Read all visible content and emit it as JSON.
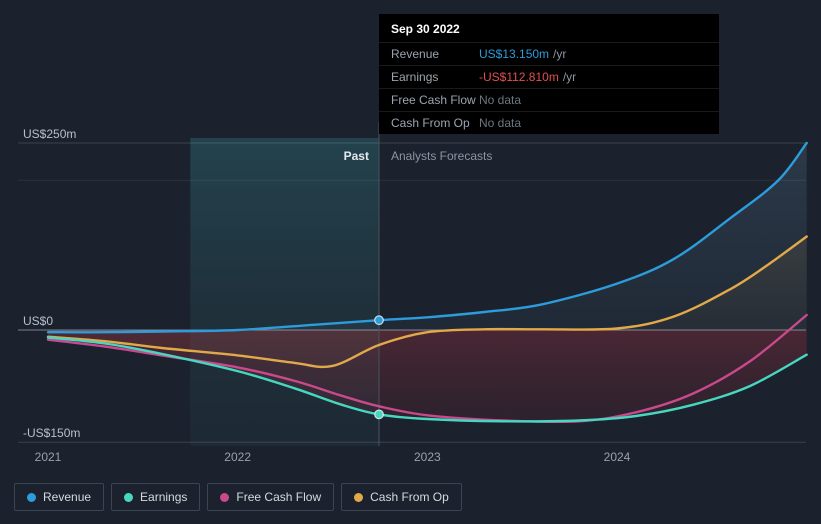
{
  "tooltip": {
    "date": "Sep 30 2022",
    "rows": [
      {
        "label": "Revenue",
        "value": "US$13.150m",
        "suffix": "/yr",
        "value_color": "#2D9CDB"
      },
      {
        "label": "Earnings",
        "value": "-US$112.810m",
        "suffix": "/yr",
        "value_color": "#E2504C"
      },
      {
        "label": "Free Cash Flow",
        "value": "No data",
        "suffix": "",
        "value_color": "#6D7680"
      },
      {
        "label": "Cash From Op",
        "value": "No data",
        "suffix": "",
        "value_color": "#6D7680"
      }
    ]
  },
  "theme": {
    "background": "#1B222D",
    "highlight_band": "#2E6A74",
    "negative_area": "#A03040",
    "zero_line": "#C8D2DC",
    "divider": "#49535F"
  },
  "chart_data": {
    "type": "line",
    "x_axis": {
      "ticks": [
        {
          "value": 2021,
          "label": "2021"
        },
        {
          "value": 2022,
          "label": "2022"
        },
        {
          "value": 2023,
          "label": "2023"
        },
        {
          "value": 2024,
          "label": "2024"
        }
      ],
      "range": [
        2021,
        2025.05
      ]
    },
    "y_axis": {
      "labels": [
        {
          "value": 250,
          "label": "US$250m"
        },
        {
          "value": 0,
          "label": "US$0"
        },
        {
          "value": -150,
          "label": "-US$150m"
        }
      ],
      "gridlines": [
        250,
        200,
        0,
        -150
      ],
      "range": [
        -165,
        262
      ],
      "unit": "US$ millions"
    },
    "divider": {
      "x": 2022.745,
      "past_label": "Past",
      "forecast_label": "Analysts Forecasts"
    },
    "highlight_band": {
      "from": 2021.75,
      "to": 2022.745
    },
    "series": [
      {
        "name": "Revenue",
        "color": "#2D9CDB",
        "points": [
          [
            2021,
            -3
          ],
          [
            2021.3,
            -3
          ],
          [
            2021.6,
            -2
          ],
          [
            2022,
            0
          ],
          [
            2022.4,
            7
          ],
          [
            2022.745,
            13.15
          ],
          [
            2023,
            17
          ],
          [
            2023.3,
            24
          ],
          [
            2023.6,
            34
          ],
          [
            2024,
            62
          ],
          [
            2024.3,
            95
          ],
          [
            2024.6,
            150
          ],
          [
            2024.85,
            200
          ],
          [
            2025,
            250
          ]
        ]
      },
      {
        "name": "Earnings",
        "color": "#47D7C1",
        "points": [
          [
            2021,
            -10
          ],
          [
            2021.3,
            -18
          ],
          [
            2021.6,
            -32
          ],
          [
            2022,
            -55
          ],
          [
            2022.3,
            -78
          ],
          [
            2022.55,
            -100
          ],
          [
            2022.745,
            -112.81
          ],
          [
            2023,
            -119
          ],
          [
            2023.4,
            -122
          ],
          [
            2023.8,
            -121
          ],
          [
            2024.1,
            -115
          ],
          [
            2024.4,
            -100
          ],
          [
            2024.7,
            -75
          ],
          [
            2025,
            -33
          ]
        ]
      },
      {
        "name": "Free Cash Flow",
        "color": "#C9498D",
        "points": [
          [
            2021,
            -13
          ],
          [
            2021.3,
            -22
          ],
          [
            2021.6,
            -34
          ],
          [
            2022,
            -50
          ],
          [
            2022.3,
            -68
          ],
          [
            2022.55,
            -88
          ],
          [
            2022.745,
            -102
          ],
          [
            2023,
            -114
          ],
          [
            2023.4,
            -121
          ],
          [
            2023.8,
            -122
          ],
          [
            2024.1,
            -110
          ],
          [
            2024.4,
            -85
          ],
          [
            2024.7,
            -42
          ],
          [
            2025,
            20
          ]
        ]
      },
      {
        "name": "Cash From Op",
        "color": "#E2A94A",
        "points": [
          [
            2021,
            -9
          ],
          [
            2021.3,
            -15
          ],
          [
            2021.6,
            -24
          ],
          [
            2022,
            -34
          ],
          [
            2022.3,
            -44
          ],
          [
            2022.5,
            -48
          ],
          [
            2022.745,
            -20
          ],
          [
            2023,
            -3
          ],
          [
            2023.3,
            1
          ],
          [
            2023.6,
            1
          ],
          [
            2024,
            2
          ],
          [
            2024.3,
            18
          ],
          [
            2024.6,
            55
          ],
          [
            2024.8,
            88
          ],
          [
            2025,
            125
          ]
        ]
      }
    ],
    "markers": [
      {
        "series": "Revenue",
        "x": 2022.745,
        "value": 13.15
      },
      {
        "series": "Earnings",
        "x": 2022.745,
        "value": -112.81
      }
    ]
  }
}
